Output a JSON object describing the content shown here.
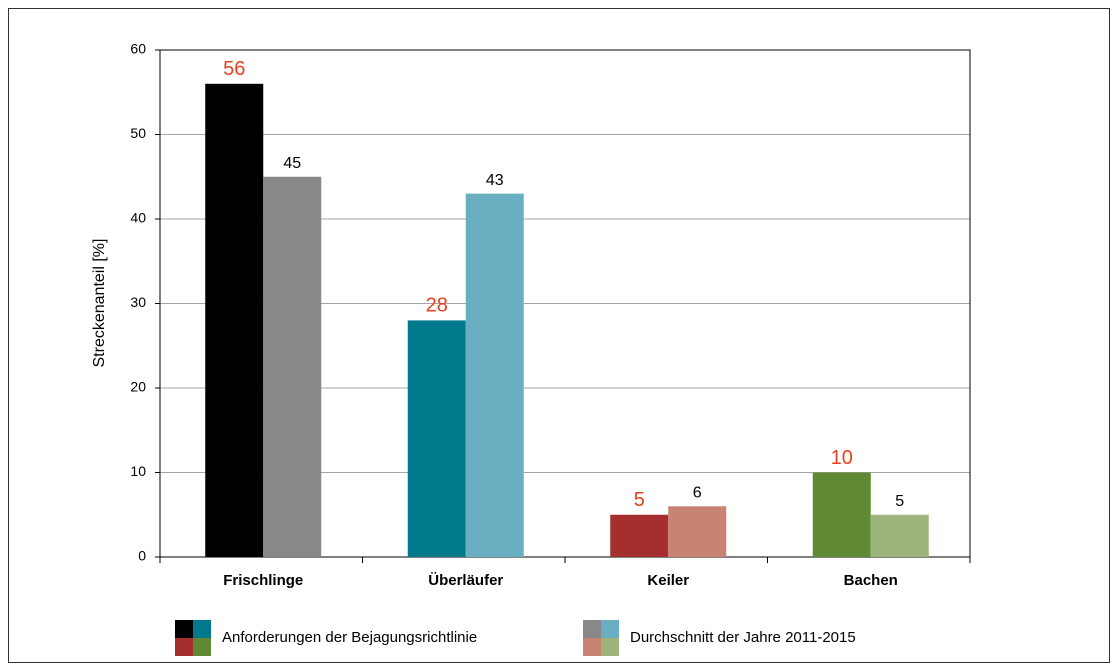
{
  "chart_data": {
    "type": "bar",
    "y_label": "Streckenanteil [%]",
    "categories": [
      "Frischlinge",
      "Überläufer",
      "Keiler",
      "Bachen"
    ],
    "series": [
      {
        "name": "Anforderungen der Bejagungsrichtlinie",
        "colors": [
          "#000000",
          "#00798c",
          "#a42f2e",
          "#5f8a33"
        ],
        "label_color": "#e8401c",
        "values": [
          56,
          28,
          5,
          10
        ]
      },
      {
        "name": "Durchschnitt der Jahre 2011-2015",
        "colors": [
          "#878887",
          "#6aafc1",
          "#c88373",
          "#9db57b"
        ],
        "label_color": "#000000",
        "values": [
          45,
          43,
          6,
          5
        ]
      }
    ],
    "ylim": [
      0,
      60
    ],
    "yticks": [
      0,
      10,
      20,
      30,
      40,
      50,
      60
    ],
    "grid": true
  }
}
